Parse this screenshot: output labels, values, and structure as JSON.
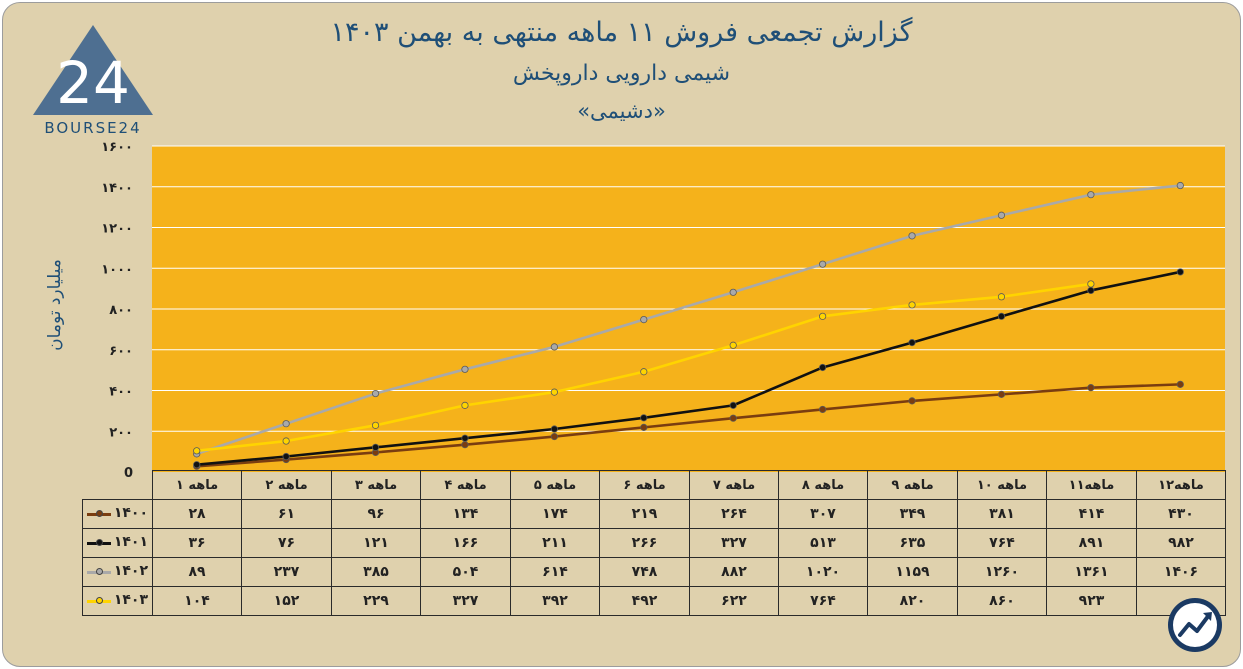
{
  "title_line1": "گزارش تجمعی فروش ۱۱ ماهه منتهی به بهمن ۱۴۰۳",
  "title_line2": "شیمی دارویی داروپخش",
  "title_line3": "«دشیمی»",
  "logo_text": "BOURSE24",
  "colors": {
    "background": "#dfd1ad",
    "plot_area": "#f5b21b",
    "grid": "#ffffff",
    "title": "#1f4f77",
    "s1400": "#7a3d10",
    "s1401": "#111111",
    "s1402": "#a9a9a9",
    "s1403": "#ffd400"
  },
  "chart_data": {
    "type": "line",
    "ylabel": "میلیارد تومان",
    "ylim": [
      0,
      1600
    ],
    "yticks": [
      {
        "value": 0,
        "label": "0"
      },
      {
        "value": 200,
        "label": "۲۰۰"
      },
      {
        "value": 400,
        "label": "۴۰۰"
      },
      {
        "value": 600,
        "label": "۶۰۰"
      },
      {
        "value": 800,
        "label": "۸۰۰"
      },
      {
        "value": 1000,
        "label": "۱۰۰۰"
      },
      {
        "value": 1200,
        "label": "۱۲۰۰"
      },
      {
        "value": 1400,
        "label": "۱۴۰۰"
      },
      {
        "value": 1600,
        "label": "۱۶۰۰"
      }
    ],
    "grid": true,
    "legend": "data-table",
    "categories": [
      "۱ ماهه",
      "۲ ماهه",
      "۳ ماهه",
      "۴ ماهه",
      "۵ ماهه",
      "۶ ماهه",
      "۷ ماهه",
      "۸ ماهه",
      "۹ ماهه",
      "۱۰ ماهه",
      "۱۱ماهه",
      "۱۲ماهه"
    ],
    "series": [
      {
        "name": "۱۴۰۰",
        "color": "#7a3d10",
        "values": [
          28,
          61,
          96,
          134,
          174,
          219,
          264,
          307,
          349,
          381,
          414,
          430
        ],
        "labels": [
          "۲۸",
          "۶۱",
          "۹۶",
          "۱۳۴",
          "۱۷۴",
          "۲۱۹",
          "۲۶۴",
          "۳۰۷",
          "۳۴۹",
          "۳۸۱",
          "۴۱۴",
          "۴۳۰"
        ]
      },
      {
        "name": "۱۴۰۱",
        "color": "#111111",
        "values": [
          36,
          76,
          121,
          166,
          211,
          266,
          327,
          513,
          635,
          764,
          891,
          982
        ],
        "labels": [
          "۳۶",
          "۷۶",
          "۱۲۱",
          "۱۶۶",
          "۲۱۱",
          "۲۶۶",
          "۳۲۷",
          "۵۱۳",
          "۶۳۵",
          "۷۶۴",
          "۸۹۱",
          "۹۸۲"
        ]
      },
      {
        "name": "۱۴۰۲",
        "color": "#a9a9a9",
        "values": [
          89,
          237,
          385,
          504,
          614,
          748,
          882,
          1020,
          1159,
          1260,
          1361,
          1406
        ],
        "labels": [
          "۸۹",
          "۲۳۷",
          "۳۸۵",
          "۵۰۴",
          "۶۱۴",
          "۷۴۸",
          "۸۸۲",
          "۱۰۲۰",
          "۱۱۵۹",
          "۱۲۶۰",
          "۱۳۶۱",
          "۱۴۰۶"
        ]
      },
      {
        "name": "۱۴۰۳",
        "color": "#ffd400",
        "values": [
          104,
          152,
          229,
          327,
          392,
          492,
          622,
          764,
          820,
          860,
          923,
          null
        ],
        "labels": [
          "۱۰۴",
          "۱۵۲",
          "۲۲۹",
          "۳۲۷",
          "۳۹۲",
          "۴۹۲",
          "۶۲۲",
          "۷۶۴",
          "۸۲۰",
          "۸۶۰",
          "۹۲۳",
          ""
        ]
      }
    ]
  }
}
